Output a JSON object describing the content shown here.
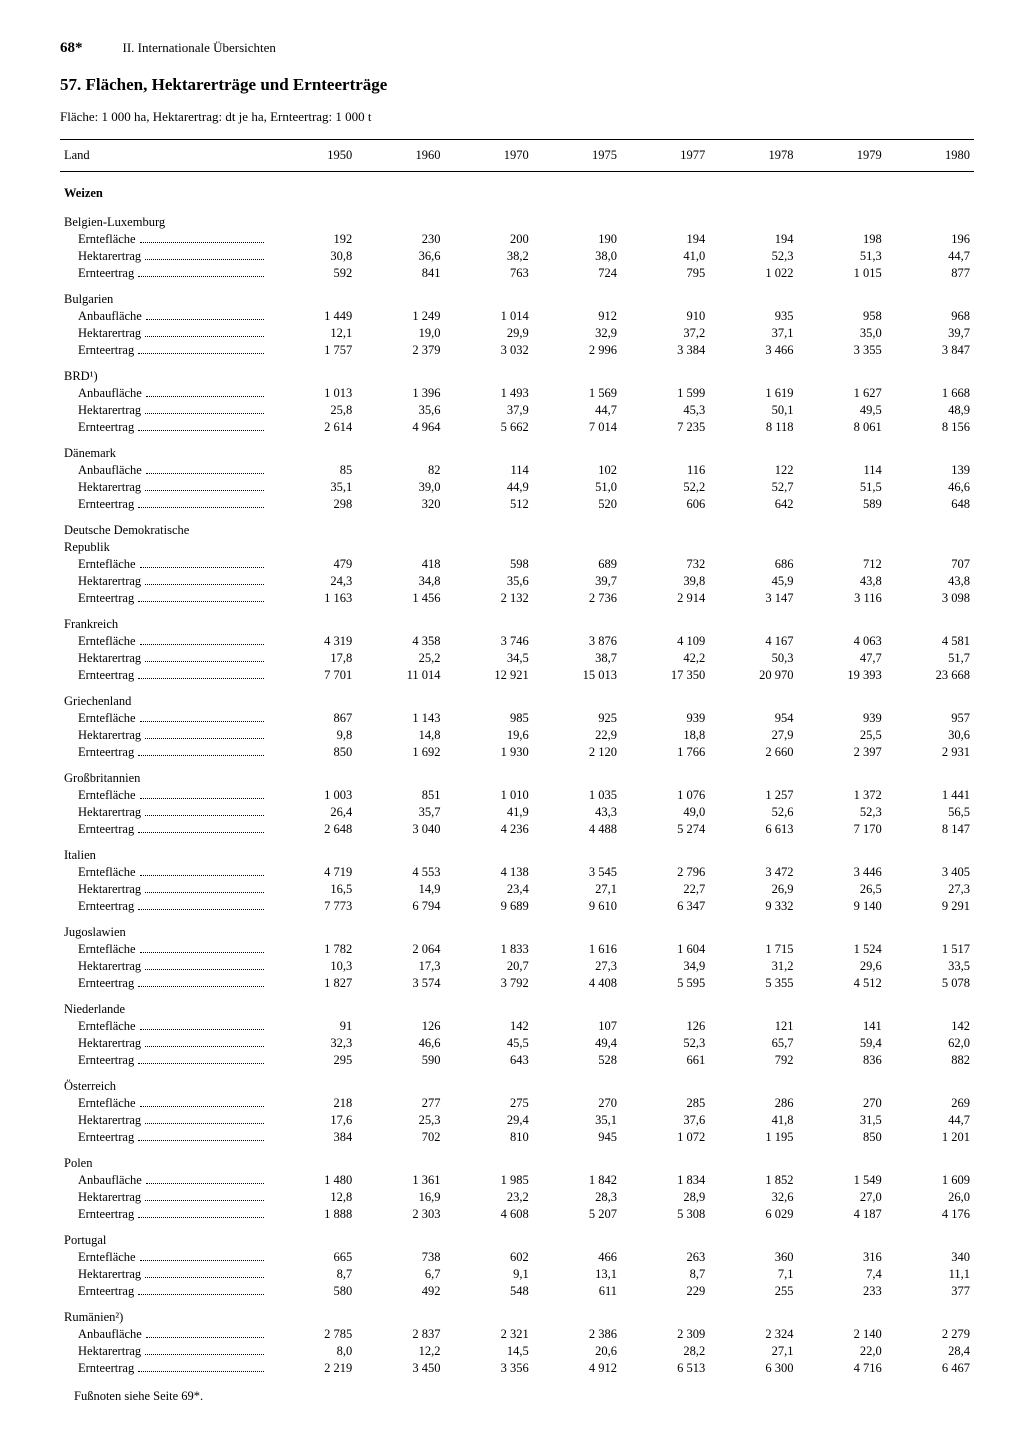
{
  "header": {
    "page_number": "68*",
    "section": "II. Internationale Übersichten"
  },
  "title": "57. Flächen, Hektarerträge und Ernteerträge",
  "subtitle": "Fläche: 1 000 ha, Hektarertrag: dt je ha, Ernteertrag: 1 000 t",
  "table": {
    "col_label": "Land",
    "years": [
      "1950",
      "1960",
      "1970",
      "1975",
      "1977",
      "1978",
      "1979",
      "1980"
    ],
    "crop_section": "Weizen",
    "countries": [
      {
        "name": "Belgien-Luxemburg",
        "rows": [
          {
            "label": "Erntefläche",
            "v": [
              "192",
              "230",
              "200",
              "190",
              "194",
              "194",
              "198",
              "196"
            ]
          },
          {
            "label": "Hektarertrag",
            "v": [
              "30,8",
              "36,6",
              "38,2",
              "38,0",
              "41,0",
              "52,3",
              "51,3",
              "44,7"
            ]
          },
          {
            "label": "Ernteertrag",
            "v": [
              "592",
              "841",
              "763",
              "724",
              "795",
              "1 022",
              "1 015",
              "877"
            ]
          }
        ]
      },
      {
        "name": "Bulgarien",
        "rows": [
          {
            "label": "Anbaufläche",
            "v": [
              "1 449",
              "1 249",
              "1 014",
              "912",
              "910",
              "935",
              "958",
              "968"
            ]
          },
          {
            "label": "Hektarertrag",
            "v": [
              "12,1",
              "19,0",
              "29,9",
              "32,9",
              "37,2",
              "37,1",
              "35,0",
              "39,7"
            ]
          },
          {
            "label": "Ernteertrag",
            "v": [
              "1 757",
              "2 379",
              "3 032",
              "2 996",
              "3 384",
              "3 466",
              "3 355",
              "3 847"
            ]
          }
        ]
      },
      {
        "name": "BRD¹)",
        "rows": [
          {
            "label": "Anbaufläche",
            "v": [
              "1 013",
              "1 396",
              "1 493",
              "1 569",
              "1 599",
              "1 619",
              "1 627",
              "1 668"
            ]
          },
          {
            "label": "Hektarertrag",
            "v": [
              "25,8",
              "35,6",
              "37,9",
              "44,7",
              "45,3",
              "50,1",
              "49,5",
              "48,9"
            ]
          },
          {
            "label": "Ernteertrag",
            "v": [
              "2 614",
              "4 964",
              "5 662",
              "7 014",
              "7 235",
              "8 118",
              "8 061",
              "8 156"
            ]
          }
        ]
      },
      {
        "name": "Dänemark",
        "rows": [
          {
            "label": "Anbaufläche",
            "v": [
              "85",
              "82",
              "114",
              "102",
              "116",
              "122",
              "114",
              "139"
            ]
          },
          {
            "label": "Hektarertrag",
            "v": [
              "35,1",
              "39,0",
              "44,9",
              "51,0",
              "52,2",
              "52,7",
              "51,5",
              "46,6"
            ]
          },
          {
            "label": "Ernteertrag",
            "v": [
              "298",
              "320",
              "512",
              "520",
              "606",
              "642",
              "589",
              "648"
            ]
          }
        ]
      },
      {
        "name": "Deutsche Demokratische Republik",
        "wrap": true,
        "rows": [
          {
            "label": "Erntefläche",
            "v": [
              "479",
              "418",
              "598",
              "689",
              "732",
              "686",
              "712",
              "707"
            ]
          },
          {
            "label": "Hektarertrag",
            "v": [
              "24,3",
              "34,8",
              "35,6",
              "39,7",
              "39,8",
              "45,9",
              "43,8",
              "43,8"
            ]
          },
          {
            "label": "Ernteertrag",
            "v": [
              "1 163",
              "1 456",
              "2 132",
              "2 736",
              "2 914",
              "3 147",
              "3 116",
              "3 098"
            ]
          }
        ]
      },
      {
        "name": "Frankreich",
        "rows": [
          {
            "label": "Erntefläche",
            "v": [
              "4 319",
              "4 358",
              "3 746",
              "3 876",
              "4 109",
              "4 167",
              "4 063",
              "4 581"
            ]
          },
          {
            "label": "Hektarertrag",
            "v": [
              "17,8",
              "25,2",
              "34,5",
              "38,7",
              "42,2",
              "50,3",
              "47,7",
              "51,7"
            ]
          },
          {
            "label": "Ernteertrag",
            "v": [
              "7 701",
              "11 014",
              "12 921",
              "15 013",
              "17 350",
              "20 970",
              "19 393",
              "23 668"
            ]
          }
        ]
      },
      {
        "name": "Griechenland",
        "rows": [
          {
            "label": "Erntefläche",
            "v": [
              "867",
              "1 143",
              "985",
              "925",
              "939",
              "954",
              "939",
              "957"
            ]
          },
          {
            "label": "Hektarertrag",
            "v": [
              "9,8",
              "14,8",
              "19,6",
              "22,9",
              "18,8",
              "27,9",
              "25,5",
              "30,6"
            ]
          },
          {
            "label": "Ernteertrag",
            "v": [
              "850",
              "1 692",
              "1 930",
              "2 120",
              "1 766",
              "2 660",
              "2 397",
              "2 931"
            ]
          }
        ]
      },
      {
        "name": "Großbritannien",
        "rows": [
          {
            "label": "Erntefläche",
            "v": [
              "1 003",
              "851",
              "1 010",
              "1 035",
              "1 076",
              "1 257",
              "1 372",
              "1 441"
            ]
          },
          {
            "label": "Hektarertrag",
            "v": [
              "26,4",
              "35,7",
              "41,9",
              "43,3",
              "49,0",
              "52,6",
              "52,3",
              "56,5"
            ]
          },
          {
            "label": "Ernteertrag",
            "v": [
              "2 648",
              "3 040",
              "4 236",
              "4 488",
              "5 274",
              "6 613",
              "7 170",
              "8 147"
            ]
          }
        ]
      },
      {
        "name": "Italien",
        "rows": [
          {
            "label": "Erntefläche",
            "v": [
              "4 719",
              "4 553",
              "4 138",
              "3 545",
              "2 796",
              "3 472",
              "3 446",
              "3 405"
            ]
          },
          {
            "label": "Hektarertrag",
            "v": [
              "16,5",
              "14,9",
              "23,4",
              "27,1",
              "22,7",
              "26,9",
              "26,5",
              "27,3"
            ]
          },
          {
            "label": "Ernteertrag",
            "v": [
              "7 773",
              "6 794",
              "9 689",
              "9 610",
              "6 347",
              "9 332",
              "9 140",
              "9 291"
            ]
          }
        ]
      },
      {
        "name": "Jugoslawien",
        "rows": [
          {
            "label": "Erntefläche",
            "v": [
              "1 782",
              "2 064",
              "1 833",
              "1 616",
              "1 604",
              "1 715",
              "1 524",
              "1 517"
            ]
          },
          {
            "label": "Hektarertrag",
            "v": [
              "10,3",
              "17,3",
              "20,7",
              "27,3",
              "34,9",
              "31,2",
              "29,6",
              "33,5"
            ]
          },
          {
            "label": "Ernteertrag",
            "v": [
              "1 827",
              "3 574",
              "3 792",
              "4 408",
              "5 595",
              "5 355",
              "4 512",
              "5 078"
            ]
          }
        ]
      },
      {
        "name": "Niederlande",
        "rows": [
          {
            "label": "Erntefläche",
            "v": [
              "91",
              "126",
              "142",
              "107",
              "126",
              "121",
              "141",
              "142"
            ]
          },
          {
            "label": "Hektarertrag",
            "v": [
              "32,3",
              "46,6",
              "45,5",
              "49,4",
              "52,3",
              "65,7",
              "59,4",
              "62,0"
            ]
          },
          {
            "label": "Ernteertrag",
            "v": [
              "295",
              "590",
              "643",
              "528",
              "661",
              "792",
              "836",
              "882"
            ]
          }
        ]
      },
      {
        "name": "Österreich",
        "rows": [
          {
            "label": "Erntefläche",
            "v": [
              "218",
              "277",
              "275",
              "270",
              "285",
              "286",
              "270",
              "269"
            ]
          },
          {
            "label": "Hektarertrag",
            "v": [
              "17,6",
              "25,3",
              "29,4",
              "35,1",
              "37,6",
              "41,8",
              "31,5",
              "44,7"
            ]
          },
          {
            "label": "Ernteertrag",
            "v": [
              "384",
              "702",
              "810",
              "945",
              "1 072",
              "1 195",
              "850",
              "1 201"
            ]
          }
        ]
      },
      {
        "name": "Polen",
        "rows": [
          {
            "label": "Anbaufläche",
            "v": [
              "1 480",
              "1 361",
              "1 985",
              "1 842",
              "1 834",
              "1 852",
              "1 549",
              "1 609"
            ]
          },
          {
            "label": "Hektarertrag",
            "v": [
              "12,8",
              "16,9",
              "23,2",
              "28,3",
              "28,9",
              "32,6",
              "27,0",
              "26,0"
            ]
          },
          {
            "label": "Ernteertrag",
            "v": [
              "1 888",
              "2 303",
              "4 608",
              "5 207",
              "5 308",
              "6 029",
              "4 187",
              "4 176"
            ]
          }
        ]
      },
      {
        "name": "Portugal",
        "rows": [
          {
            "label": "Erntefläche",
            "v": [
              "665",
              "738",
              "602",
              "466",
              "263",
              "360",
              "316",
              "340"
            ]
          },
          {
            "label": "Hektarertrag",
            "v": [
              "8,7",
              "6,7",
              "9,1",
              "13,1",
              "8,7",
              "7,1",
              "7,4",
              "11,1"
            ]
          },
          {
            "label": "Ernteertrag",
            "v": [
              "580",
              "492",
              "548",
              "611",
              "229",
              "255",
              "233",
              "377"
            ]
          }
        ]
      },
      {
        "name": "Rumänien²)",
        "rows": [
          {
            "label": "Anbaufläche",
            "v": [
              "2 785",
              "2 837",
              "2 321",
              "2 386",
              "2 309",
              "2 324",
              "2 140",
              "2 279"
            ]
          },
          {
            "label": "Hektarertrag",
            "v": [
              "8,0",
              "12,2",
              "14,5",
              "20,6",
              "28,2",
              "27,1",
              "22,0",
              "28,4"
            ]
          },
          {
            "label": "Ernteertrag",
            "v": [
              "2 219",
              "3 450",
              "3 356",
              "4 912",
              "6 513",
              "6 300",
              "4 716",
              "6 467"
            ]
          }
        ]
      }
    ]
  },
  "footnote": "Fußnoten siehe Seite 69*."
}
